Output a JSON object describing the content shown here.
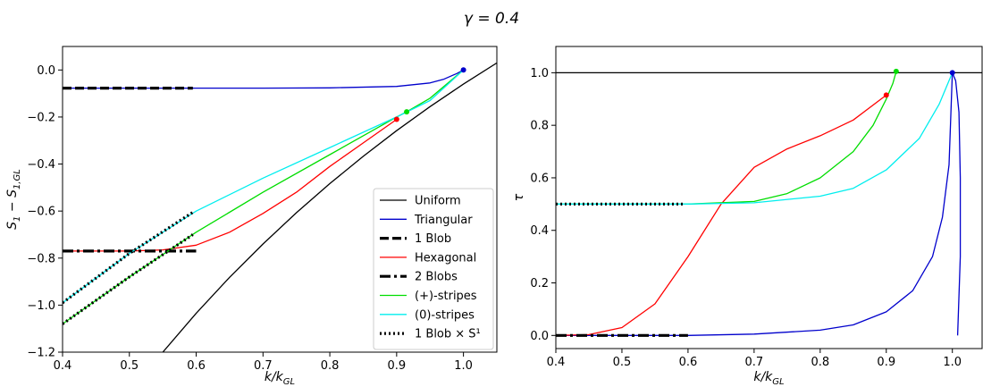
{
  "suptitle": "γ = 0.4",
  "chart_data": [
    {
      "type": "line",
      "xlabel": "k/k_GL",
      "ylabel": "S_1 − S_{1,GL}",
      "xlim": [
        0.4,
        1.05
      ],
      "ylim": [
        -1.2,
        0.1
      ],
      "xticks": [
        0.4,
        0.5,
        0.6,
        0.7,
        0.8,
        0.9,
        1.0
      ],
      "yticks": [
        -1.2,
        -1.0,
        -0.8,
        -0.6,
        -0.4,
        -0.2,
        0.0
      ],
      "xtick_labels": [
        "0.4",
        "0.5",
        "0.6",
        "0.7",
        "0.8",
        "0.9",
        "1.0"
      ],
      "ytick_labels": [
        "−1.2",
        "−1.0",
        "−0.8",
        "−0.6",
        "−0.4",
        "−0.2",
        "0.0"
      ],
      "legend_position": "lower-right",
      "legend": [
        {
          "label": "Uniform",
          "color": "#000000",
          "style": "solid"
        },
        {
          "label": "Triangular",
          "color": "#0000cc",
          "style": "solid"
        },
        {
          "label": "1 Blob",
          "color": "#000000",
          "style": "dashed-thick"
        },
        {
          "label": "Hexagonal",
          "color": "#ff0000",
          "style": "solid"
        },
        {
          "label": "2 Blobs",
          "color": "#000000",
          "style": "dashdot-thick"
        },
        {
          "label": "(+)-stripes",
          "color": "#00dd00",
          "style": "solid"
        },
        {
          "label": "(0)-stripes",
          "color": "#00eeee",
          "style": "solid"
        },
        {
          "label": "1 Blob × S¹",
          "color": "#000000",
          "style": "dotted-thick"
        }
      ],
      "series": [
        {
          "color": "#000000",
          "style": "solid",
          "x": [
            0.55,
            0.6,
            0.65,
            0.7,
            0.75,
            0.8,
            0.85,
            0.9,
            0.95,
            1.0,
            1.05
          ],
          "y": [
            -1.2,
            -1.035,
            -0.882,
            -0.74,
            -0.607,
            -0.483,
            -0.367,
            -0.258,
            -0.156,
            -0.06,
            0.03
          ]
        },
        {
          "color": "#0000cc",
          "style": "solid",
          "x": [
            0.4,
            0.5,
            0.6,
            0.7,
            0.8,
            0.9,
            0.95,
            0.97,
            0.99,
            1.0
          ],
          "y": [
            -0.077,
            -0.077,
            -0.077,
            -0.077,
            -0.076,
            -0.07,
            -0.055,
            -0.04,
            -0.015,
            0.0
          ]
        },
        {
          "color": "#000000",
          "style": "dashed-thick",
          "x": [
            0.4,
            0.595
          ],
          "y": [
            -0.077,
            -0.077
          ]
        },
        {
          "color": "#ff0000",
          "style": "solid",
          "x": [
            0.4,
            0.5,
            0.55,
            0.6,
            0.65,
            0.7,
            0.75,
            0.8,
            0.85,
            0.9
          ],
          "y": [
            -0.77,
            -0.77,
            -0.765,
            -0.745,
            -0.69,
            -0.61,
            -0.52,
            -0.41,
            -0.31,
            -0.21
          ]
        },
        {
          "color": "#000000",
          "style": "dashdot-thick",
          "x": [
            0.4,
            0.6
          ],
          "y": [
            -0.77,
            -0.77
          ]
        },
        {
          "color": "#00dd00",
          "style": "solid",
          "x": [
            0.4,
            0.5,
            0.6,
            0.7,
            0.8,
            0.9,
            0.915,
            0.95,
            1.0
          ],
          "y": [
            -1.08,
            -0.88,
            -0.69,
            -0.52,
            -0.36,
            -0.2,
            -0.178,
            -0.12,
            0.0
          ]
        },
        {
          "color": "#00eeee",
          "style": "solid",
          "x": [
            0.4,
            0.5,
            0.6,
            0.7,
            0.8,
            0.9,
            0.95,
            1.0
          ],
          "y": [
            -0.99,
            -0.78,
            -0.6,
            -0.46,
            -0.33,
            -0.2,
            -0.13,
            0.0
          ]
        },
        {
          "color": "#000000",
          "style": "dotted-thick",
          "x": [
            0.4,
            0.5,
            0.595
          ],
          "y": [
            -1.08,
            -0.88,
            -0.7
          ]
        },
        {
          "color": "#000000",
          "style": "dotted-thick",
          "x": [
            0.4,
            0.5,
            0.595
          ],
          "y": [
            -0.99,
            -0.78,
            -0.605
          ]
        }
      ],
      "markers": [
        {
          "x": 1.0,
          "y": 0.0,
          "color": "#0000cc"
        },
        {
          "x": 0.9,
          "y": -0.21,
          "color": "#ff0000"
        },
        {
          "x": 0.915,
          "y": -0.178,
          "color": "#00dd00"
        }
      ]
    },
    {
      "type": "line",
      "xlabel": "k/k_GL",
      "ylabel": "τ",
      "xlim": [
        0.4,
        1.045
      ],
      "ylim": [
        -0.05,
        1.1
      ],
      "xticks": [
        0.4,
        0.5,
        0.6,
        0.7,
        0.8,
        0.9,
        1.0
      ],
      "yticks": [
        0.0,
        0.2,
        0.4,
        0.6,
        0.8,
        1.0
      ],
      "xtick_labels": [
        "0.4",
        "0.5",
        "0.6",
        "0.7",
        "0.8",
        "0.9",
        "1.0"
      ],
      "ytick_labels": [
        "0.0",
        "0.2",
        "0.4",
        "0.6",
        "0.8",
        "1.0"
      ],
      "series": [
        {
          "color": "#000000",
          "style": "solid",
          "x": [
            0.4,
            1.045
          ],
          "y": [
            1.0,
            1.0
          ]
        },
        {
          "color": "#0000cc",
          "style": "solid",
          "x": [
            0.4,
            0.6,
            0.7,
            0.8,
            0.85,
            0.9,
            0.94,
            0.97,
            0.985,
            0.995,
            1.0,
            1.005,
            1.01,
            1.012,
            1.012,
            1.008
          ],
          "y": [
            0.0,
            0.0,
            0.005,
            0.02,
            0.04,
            0.09,
            0.17,
            0.3,
            0.45,
            0.65,
            1.0,
            0.97,
            0.85,
            0.6,
            0.3,
            0.0
          ]
        },
        {
          "color": "#ff0000",
          "style": "solid",
          "x": [
            0.4,
            0.45,
            0.5,
            0.55,
            0.6,
            0.65,
            0.7,
            0.75,
            0.8,
            0.85,
            0.9
          ],
          "y": [
            0.0,
            0.003,
            0.03,
            0.12,
            0.3,
            0.5,
            0.64,
            0.71,
            0.76,
            0.82,
            0.915
          ]
        },
        {
          "color": "#000000",
          "style": "dashdot-thick",
          "x": [
            0.4,
            0.6
          ],
          "y": [
            0.0,
            0.0
          ]
        },
        {
          "color": "#00dd00",
          "style": "solid",
          "x": [
            0.4,
            0.6,
            0.7,
            0.75,
            0.8,
            0.85,
            0.88,
            0.9,
            0.91,
            0.915
          ],
          "y": [
            0.5,
            0.5,
            0.51,
            0.54,
            0.6,
            0.7,
            0.8,
            0.9,
            0.96,
            1.005
          ]
        },
        {
          "color": "#00eeee",
          "style": "solid",
          "x": [
            0.4,
            0.6,
            0.7,
            0.8,
            0.85,
            0.9,
            0.95,
            0.98,
            1.0
          ],
          "y": [
            0.5,
            0.5,
            0.505,
            0.53,
            0.56,
            0.63,
            0.75,
            0.88,
            1.0
          ]
        },
        {
          "color": "#000000",
          "style": "dotted-thick",
          "x": [
            0.4,
            0.595
          ],
          "y": [
            0.5,
            0.5
          ]
        }
      ],
      "markers": [
        {
          "x": 1.0,
          "y": 1.0,
          "color": "#0000cc"
        },
        {
          "x": 0.9,
          "y": 0.915,
          "color": "#ff0000"
        },
        {
          "x": 0.915,
          "y": 1.005,
          "color": "#00dd00"
        }
      ]
    }
  ]
}
